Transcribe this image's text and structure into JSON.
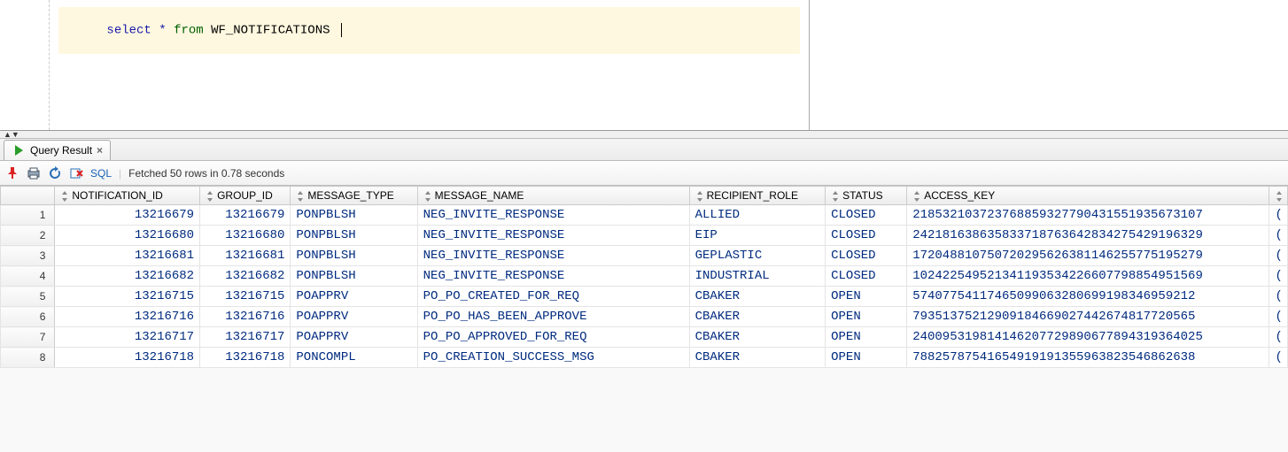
{
  "editor": {
    "sql": {
      "kw_select": "select",
      "star": "*",
      "kw_from": "from",
      "identifier": "WF_NOTIFICATIONS"
    }
  },
  "tab": {
    "label": "Query Result"
  },
  "toolbar": {
    "sql_link": "SQL",
    "status": "Fetched 50 rows in 0.78 seconds"
  },
  "columns": {
    "c0": "NOTIFICATION_ID",
    "c1": "GROUP_ID",
    "c2": "MESSAGE_TYPE",
    "c3": "MESSAGE_NAME",
    "c4": "RECIPIENT_ROLE",
    "c5": "STATUS",
    "c6": "ACCESS_KEY"
  },
  "rows": [
    {
      "n": "1",
      "notif": "13216679",
      "group": "13216679",
      "mtype": "PONPBLSH",
      "mname": "NEG_INVITE_RESPONSE",
      "recip": "ALLIED",
      "status": "CLOSED",
      "akey": "218532103723768859327790431551935673107"
    },
    {
      "n": "2",
      "notif": "13216680",
      "group": "13216680",
      "mtype": "PONPBLSH",
      "mname": "NEG_INVITE_RESPONSE",
      "recip": "EIP",
      "status": "CLOSED",
      "akey": "242181638635833718763642834275429196329"
    },
    {
      "n": "3",
      "notif": "13216681",
      "group": "13216681",
      "mtype": "PONPBLSH",
      "mname": "NEG_INVITE_RESPONSE",
      "recip": "GEPLASTIC",
      "status": "CLOSED",
      "akey": "172048810750720295626381146255775195279"
    },
    {
      "n": "4",
      "notif": "13216682",
      "group": "13216682",
      "mtype": "PONPBLSH",
      "mname": "NEG_INVITE_RESPONSE",
      "recip": "INDUSTRIAL",
      "status": "CLOSED",
      "akey": "102422549521341193534226607798854951569"
    },
    {
      "n": "5",
      "notif": "13216715",
      "group": "13216715",
      "mtype": "POAPPRV",
      "mname": "PO_PO_CREATED_FOR_REQ",
      "recip": "CBAKER",
      "status": "OPEN",
      "akey": "57407754117465099063280699198346959212"
    },
    {
      "n": "6",
      "notif": "13216716",
      "group": "13216716",
      "mtype": "POAPPRV",
      "mname": "PO_PO_HAS_BEEN_APPROVE",
      "recip": "CBAKER",
      "status": "OPEN",
      "akey": "79351375212909184669027442674817720565"
    },
    {
      "n": "7",
      "notif": "13216717",
      "group": "13216717",
      "mtype": "POAPPRV",
      "mname": "PO_PO_APPROVED_FOR_REQ",
      "recip": "CBAKER",
      "status": "OPEN",
      "akey": "240095319814146207729890677894319364025"
    },
    {
      "n": "8",
      "notif": "13216718",
      "group": "13216718",
      "mtype": "PONCOMPL",
      "mname": "PO_CREATION_SUCCESS_MSG",
      "recip": "CBAKER",
      "status": "OPEN",
      "akey": "78825787541654919191355963823546862638"
    }
  ]
}
